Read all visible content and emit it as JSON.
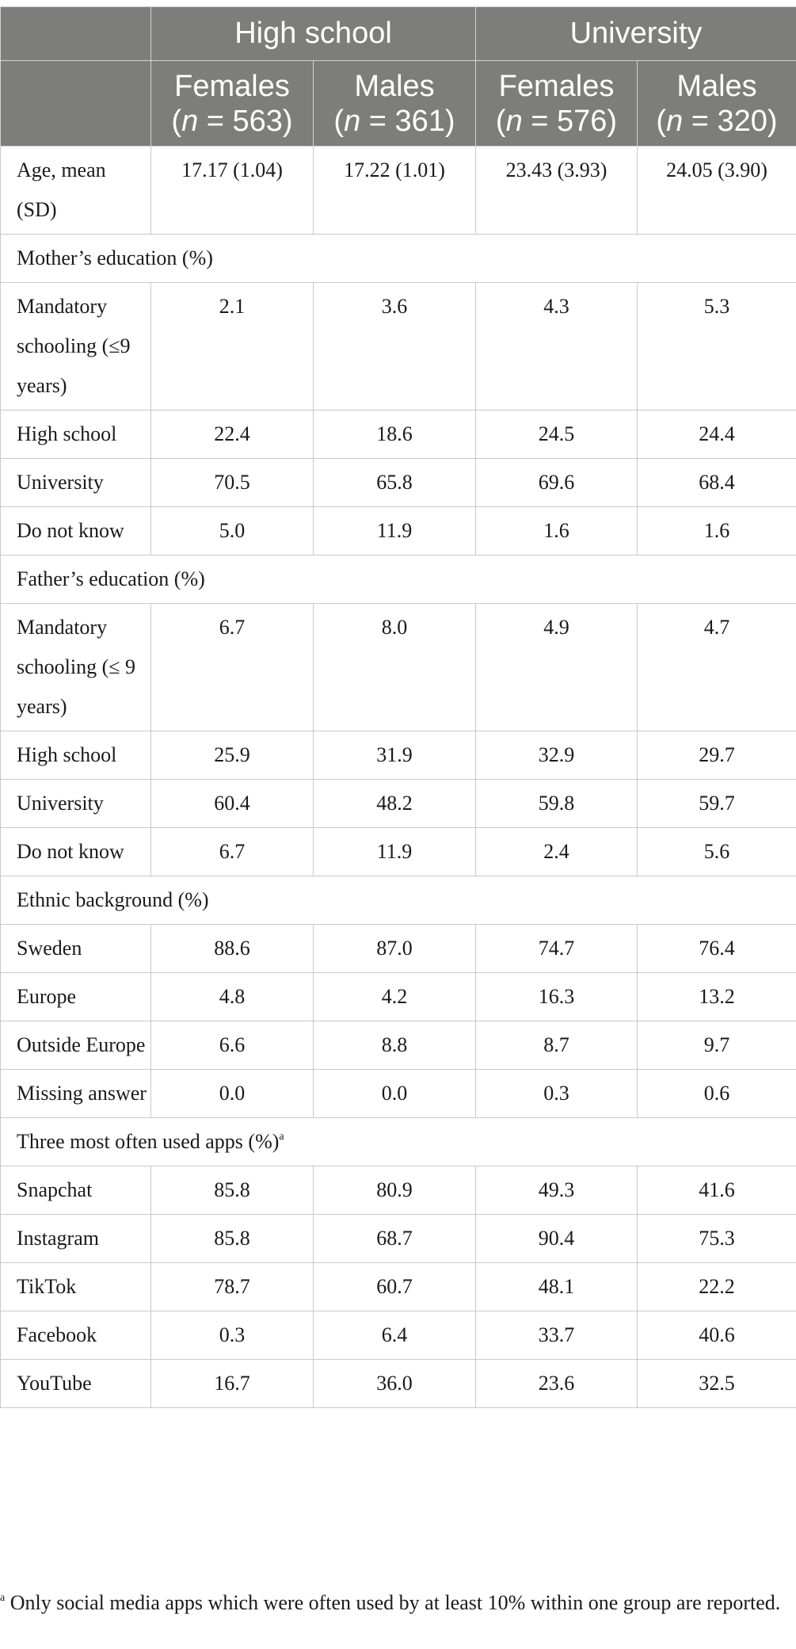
{
  "header": {
    "groups": [
      "High school",
      "University"
    ],
    "subgroups": [
      {
        "name": "Females",
        "n": "(n = 563)"
      },
      {
        "name": "Males",
        "n": "(n = 361)"
      },
      {
        "name": "Females",
        "n": "(n = 576)"
      },
      {
        "name": "Males",
        "n": "(n = 320)"
      }
    ]
  },
  "rows": [
    {
      "type": "data",
      "label": "Age, mean (SD)",
      "values": [
        "17.17 (1.04)",
        "17.22 (1.01)",
        "23.43 (3.93)",
        "24.05 (3.90)"
      ]
    },
    {
      "type": "section",
      "label": "Mother’s education (%)"
    },
    {
      "type": "data",
      "label": "Mandatory schooling (≤9 years)",
      "values": [
        "2.1",
        "3.6",
        "4.3",
        "5.3"
      ]
    },
    {
      "type": "data",
      "label": "High school",
      "values": [
        "22.4",
        "18.6",
        "24.5",
        "24.4"
      ]
    },
    {
      "type": "data",
      "label": "University",
      "values": [
        "70.5",
        "65.8",
        "69.6",
        "68.4"
      ]
    },
    {
      "type": "data",
      "label": "Do not know",
      "values": [
        "5.0",
        "11.9",
        "1.6",
        "1.6"
      ]
    },
    {
      "type": "section",
      "label": "Father’s education (%)"
    },
    {
      "type": "data",
      "label": "Mandatory schooling (≤ 9 years)",
      "values": [
        "6.7",
        "8.0",
        "4.9",
        "4.7"
      ]
    },
    {
      "type": "data",
      "label": "High school",
      "values": [
        "25.9",
        "31.9",
        "32.9",
        "29.7"
      ]
    },
    {
      "type": "data",
      "label": "University",
      "values": [
        "60.4",
        "48.2",
        "59.8",
        "59.7"
      ]
    },
    {
      "type": "data",
      "label": "Do not know",
      "values": [
        "6.7",
        "11.9",
        "2.4",
        "5.6"
      ]
    },
    {
      "type": "section",
      "label": "Ethnic background (%)"
    },
    {
      "type": "data",
      "label": "Sweden",
      "values": [
        "88.6",
        "87.0",
        "74.7",
        "76.4"
      ]
    },
    {
      "type": "data",
      "label": "Europe",
      "values": [
        "4.8",
        "4.2",
        "16.3",
        "13.2"
      ]
    },
    {
      "type": "data",
      "label": "Outside Europe",
      "values": [
        "6.6",
        "8.8",
        "8.7",
        "9.7"
      ]
    },
    {
      "type": "data",
      "label": "Missing answer",
      "values": [
        "0.0",
        "0.0",
        "0.3",
        "0.6"
      ]
    },
    {
      "type": "section",
      "label": "Three most often used apps (%)",
      "sup": "a"
    },
    {
      "type": "data",
      "label": "Snapchat",
      "values": [
        "85.8",
        "80.9",
        "49.3",
        "41.6"
      ]
    },
    {
      "type": "data",
      "label": "Instagram",
      "values": [
        "85.8",
        "68.7",
        "90.4",
        "75.3"
      ]
    },
    {
      "type": "data",
      "label": "TikTok",
      "values": [
        "78.7",
        "60.7",
        "48.1",
        "22.2"
      ]
    },
    {
      "type": "data",
      "label": "Facebook",
      "values": [
        "0.3",
        "6.4",
        "33.7",
        "40.6"
      ]
    },
    {
      "type": "data",
      "label": "YouTube",
      "values": [
        "16.7",
        "36.0",
        "23.6",
        "32.5"
      ]
    }
  ],
  "footnote": {
    "marker": "a",
    "text": "Only social media apps which were often used by at least 10% within one group are reported."
  }
}
